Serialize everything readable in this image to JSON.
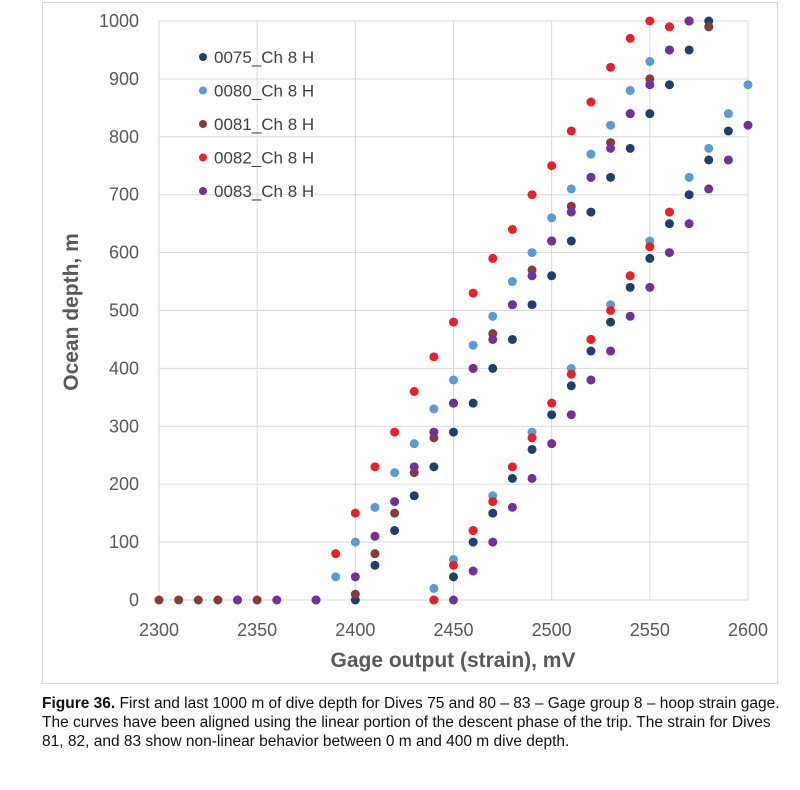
{
  "chart_data": {
    "type": "scatter",
    "title": "",
    "xlabel": "Gage output (strain), mV",
    "ylabel": "Ocean depth, m",
    "xlim": [
      2300,
      2600
    ],
    "ylim": [
      0,
      1000
    ],
    "xticks": [
      "2300",
      "2350",
      "2400",
      "2450",
      "2500",
      "2550",
      "2600"
    ],
    "yticks": [
      "0",
      "100",
      "200",
      "300",
      "400",
      "500",
      "600",
      "700",
      "800",
      "900",
      "1000"
    ],
    "grid": true,
    "legend_position": "top-left",
    "series": [
      {
        "name": "0075_Ch 8 H",
        "color": "#1f3f6e",
        "x": [
          2400,
          2410,
          2420,
          2430,
          2440,
          2450,
          2460,
          2470,
          2480,
          2490,
          2500,
          2510,
          2520,
          2530,
          2540,
          2550,
          2560,
          2570,
          2580,
          2440,
          2450,
          2460,
          2470,
          2480,
          2490,
          2500,
          2510,
          2520,
          2530,
          2540,
          2550,
          2560,
          2570,
          2580,
          2590
        ],
        "y": [
          0,
          60,
          120,
          180,
          230,
          290,
          340,
          400,
          450,
          510,
          560,
          620,
          670,
          730,
          780,
          840,
          890,
          950,
          1000,
          0,
          40,
          100,
          150,
          210,
          260,
          320,
          370,
          430,
          480,
          540,
          590,
          650,
          700,
          760,
          810
        ]
      },
      {
        "name": "0080_Ch 8 H",
        "color": "#5b9bd5",
        "x": [
          2390,
          2400,
          2410,
          2420,
          2430,
          2440,
          2450,
          2460,
          2470,
          2480,
          2490,
          2500,
          2510,
          2520,
          2530,
          2540,
          2550,
          2560,
          2570,
          2580,
          2440,
          2450,
          2460,
          2470,
          2480,
          2490,
          2500,
          2510,
          2520,
          2530,
          2540,
          2550,
          2560,
          2570,
          2580,
          2590,
          2600
        ],
        "y": [
          40,
          100,
          160,
          220,
          270,
          330,
          380,
          440,
          490,
          550,
          600,
          660,
          710,
          770,
          820,
          880,
          930,
          990,
          1000,
          990,
          20,
          70,
          120,
          180,
          230,
          290,
          340,
          400,
          450,
          510,
          560,
          620,
          670,
          730,
          780,
          840,
          890
        ]
      },
      {
        "name": "0081_Ch 8 H",
        "color": "#8b3a3a",
        "x": [
          2300,
          2310,
          2320,
          2330,
          2340,
          2350,
          2400,
          2410,
          2420,
          2430,
          2440,
          2450,
          2460,
          2470,
          2480,
          2490,
          2500,
          2510,
          2520,
          2530,
          2540,
          2550,
          2560,
          2570,
          2580
        ],
        "y": [
          0,
          0,
          0,
          0,
          0,
          0,
          10,
          80,
          150,
          220,
          280,
          340,
          400,
          460,
          510,
          570,
          620,
          680,
          730,
          790,
          840,
          900,
          950,
          1000,
          990
        ]
      },
      {
        "name": "0082_Ch 8 H",
        "color": "#e8202a",
        "x": [
          2380,
          2390,
          2400,
          2410,
          2420,
          2430,
          2440,
          2450,
          2460,
          2470,
          2480,
          2490,
          2500,
          2510,
          2520,
          2530,
          2540,
          2550,
          2560,
          2570,
          2440,
          2450,
          2460,
          2470,
          2480,
          2490,
          2500,
          2510,
          2520,
          2530,
          2540,
          2550,
          2560
        ],
        "y": [
          0,
          80,
          150,
          230,
          290,
          360,
          420,
          480,
          530,
          590,
          640,
          700,
          750,
          810,
          860,
          920,
          970,
          1000,
          990,
          1000,
          0,
          60,
          120,
          170,
          230,
          280,
          340,
          390,
          450,
          500,
          560,
          610,
          670
        ]
      },
      {
        "name": "0083_Ch 8 H",
        "color": "#7030a0",
        "x": [
          2340,
          2360,
          2380,
          2400,
          2410,
          2420,
          2430,
          2440,
          2450,
          2460,
          2470,
          2480,
          2490,
          2500,
          2510,
          2520,
          2530,
          2540,
          2550,
          2560,
          2570,
          2450,
          2460,
          2470,
          2480,
          2490,
          2500,
          2510,
          2520,
          2530,
          2540,
          2550,
          2560,
          2570,
          2580,
          2590,
          2600
        ],
        "y": [
          0,
          0,
          0,
          40,
          110,
          170,
          230,
          290,
          340,
          400,
          450,
          510,
          560,
          620,
          670,
          730,
          780,
          840,
          890,
          950,
          1000,
          0,
          50,
          100,
          160,
          210,
          270,
          320,
          380,
          430,
          490,
          540,
          600,
          650,
          710,
          760,
          820
        ]
      }
    ]
  },
  "caption": {
    "label": "Figure 36.",
    "text": " First and last 1000 m of dive depth for Dives 75 and 80 – 83 – Gage group 8 – hoop strain gage. The curves have been aligned using the linear portion of the descent phase of the trip. The strain for Dives 81, 82, and 83 show non-linear behavior between 0 m and 400 m dive depth."
  }
}
